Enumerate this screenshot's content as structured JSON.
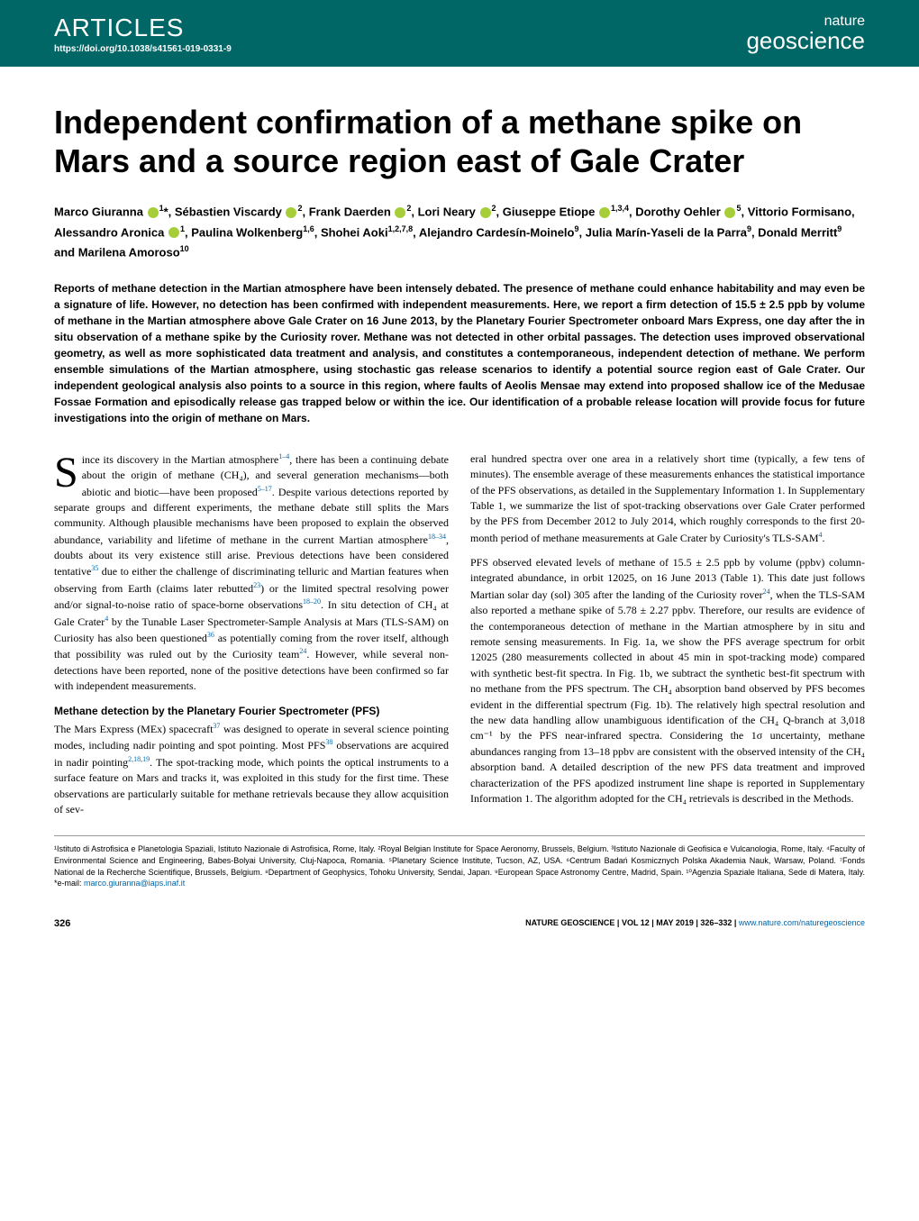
{
  "header": {
    "section_label": "ARTICLES",
    "doi": "https://doi.org/10.1038/s41561-019-0331-9",
    "journal_top": "nature",
    "journal_bottom": "geoscience"
  },
  "title": "Independent confirmation of a methane spike on Mars and a source region east of Gale Crater",
  "authors_html": "Marco Giuranna <orcid></orcid><sup>1</sup>*, Sébastien Viscardy <orcid></orcid><sup>2</sup>, Frank Daerden <orcid></orcid><sup>2</sup>, Lori Neary <orcid></orcid><sup>2</sup>, Giuseppe Etiope <orcid></orcid><sup>1,3,4</sup>, Dorothy Oehler <orcid></orcid><sup>5</sup>, Vittorio Formisano, Alessandro Aronica <orcid></orcid><sup>1</sup>, Paulina Wolkenberg<sup>1,6</sup>, Shohei Aoki<sup>1,2,7,8</sup>, Alejandro Cardesín-Moinelo<sup>9</sup>, Julia Marín-Yaseli de la Parra<sup>9</sup>, Donald Merritt<sup>9</sup> and Marilena Amoroso<sup>10</sup>",
  "abstract": "Reports of methane detection in the Martian atmosphere have been intensely debated. The presence of methane could enhance habitability and may even be a signature of life. However, no detection has been confirmed with independent measurements. Here, we report a firm detection of 15.5 ± 2.5 ppb by volume of methane in the Martian atmosphere above Gale Crater on 16 June 2013, by the Planetary Fourier Spectrometer onboard Mars Express, one day after the in situ observation of a methane spike by the Curiosity rover. Methane was not detected in other orbital passages. The detection uses improved observational geometry, as well as more sophisticated data treatment and analysis, and constitutes a contemporaneous, independent detection of methane. We perform ensemble simulations of the Martian atmosphere, using stochastic gas release scenarios to identify a potential source region east of Gale Crater. Our independent geological analysis also points to a source in this region, where faults of Aeolis Mensae may extend into proposed shallow ice of the Medusae Fossae Formation and episodically release gas trapped below or within the ice. Our identification of a probable release location will provide focus for future investigations into the origin of methane on Mars.",
  "body": {
    "p1": "ince its discovery in the Martian atmosphere<refsup>1–4</refsup>, there has been a continuing debate about the origin of methane (CH₄), and several generation mechanisms—both abiotic and biotic—have been proposed<refsup>5–17</refsup>. Despite various detections reported by separate groups and different experiments, the methane debate still splits the Mars community. Although plausible mechanisms have been proposed to explain the observed abundance, variability and lifetime of methane in the current Martian atmosphere<refsup>18–34</refsup>, doubts about its very existence still arise. Previous detections have been considered tentative<refsup>35</refsup> due to either the challenge of discriminating telluric and Martian features when observing from Earth (claims later rebutted<refsup>23</refsup>) or the limited spectral resolving power and/or signal-to-noise ratio of space-borne observations<refsup>18–20</refsup>. In situ detection of CH₄ at Gale Crater<refsup>4</refsup> by the Tunable Laser Spectrometer-Sample Analysis at Mars (TLS-SAM) on Curiosity has also been questioned<refsup>36</refsup> as potentially coming from the rover itself, although that possibility was ruled out by the Curiosity team<refsup>24</refsup>. However, while several non-detections have been reported, none of the positive detections have been confirmed so far with independent measurements.",
    "section1_title": "Methane detection by the Planetary Fourier Spectrometer (PFS)",
    "p2": "The Mars Express (MEx) spacecraft<refsup>37</refsup> was designed to operate in several science pointing modes, including nadir pointing and spot pointing. Most PFS<refsup>38</refsup> observations are acquired in nadir pointing<refsup>2,18,19</refsup>. The spot-tracking mode, which points the optical instruments to a surface feature on Mars and tracks it, was exploited in this study for the first time. These observations are particularly suitable for methane retrievals because they allow acquisition of sev-",
    "p3": "eral hundred spectra over one area in a relatively short time (typically, a few tens of minutes). The ensemble average of these measurements enhances the statistical importance of the PFS observations, as detailed in the Supplementary Information 1. In Supplementary Table 1, we summarize the list of spot-tracking observations over Gale Crater performed by the PFS from December 2012 to July 2014, which roughly corresponds to the first 20-month period of methane measurements at Gale Crater by Curiosity's TLS-SAM<refsup>4</refsup>.",
    "p4": "PFS observed elevated levels of methane of 15.5 ± 2.5 ppb by volume (ppbv) column-integrated abundance, in orbit 12025, on 16 June 2013 (Table 1). This date just follows Martian solar day (sol) 305 after the landing of the Curiosity rover<refsup>24</refsup>, when the TLS-SAM also reported a methane spike of 5.78 ± 2.27 ppbv. Therefore, our results are evidence of the contemporaneous detection of methane in the Martian atmosphere by in situ and remote sensing measurements. In Fig. 1a, we show the PFS average spectrum for orbit 12025 (280 measurements collected in about 45 min in spot-tracking mode) compared with synthetic best-fit spectra. In Fig. 1b, we subtract the synthetic best-fit spectrum with no methane from the PFS spectrum. The CH₄ absorption band observed by PFS becomes evident in the differential spectrum (Fig. 1b). The relatively high spectral resolution and the new data handling allow unambiguous identification of the CH₄ Q-branch at 3,018 cm⁻¹ by the PFS near-infrared spectra. Considering the 1σ uncertainty, methane abundances ranging from 13–18 ppbv are consistent with the observed intensity of the CH₄ absorption band. A detailed description of the new PFS data treatment and improved characterization of the PFS apodized instrument line shape is reported in Supplementary Information 1. The algorithm adopted for the CH₄ retrievals is described in the Methods."
  },
  "affiliations": "¹Istituto di Astrofisica e Planetologia Spaziali, Istituto Nazionale di Astrofisica, Rome, Italy. ²Royal Belgian Institute for Space Aeronomy, Brussels, Belgium. ³Istituto Nazionale di Geofisica e Vulcanologia, Rome, Italy. ⁴Faculty of Environmental Science and Engineering, Babes-Bolyai University, Cluj-Napoca, Romania. ⁵Planetary Science Institute, Tucson, AZ, USA. ⁶Centrum Badań Kosmicznych Polska Akademia Nauk, Warsaw, Poland. ⁷Fonds National de la Recherche Scientifique, Brussels, Belgium. ⁸Department of Geophysics, Tohoku University, Sendai, Japan. ⁹European Space Astronomy Centre, Madrid, Spain. ¹⁰Agenzia Spaziale Italiana, Sede di Matera, Italy. *e-mail: ",
  "email": "marco.giuranna@iaps.inaf.it",
  "footer": {
    "page": "326",
    "citation": "NATURE GEOSCIENCE | VOL 12 | MAY 2019 | 326–332 | ",
    "url": "www.nature.com/naturegeoscience"
  },
  "colors": {
    "header_bg": "#006666",
    "link": "#0066aa",
    "orcid": "#a6ce39"
  }
}
